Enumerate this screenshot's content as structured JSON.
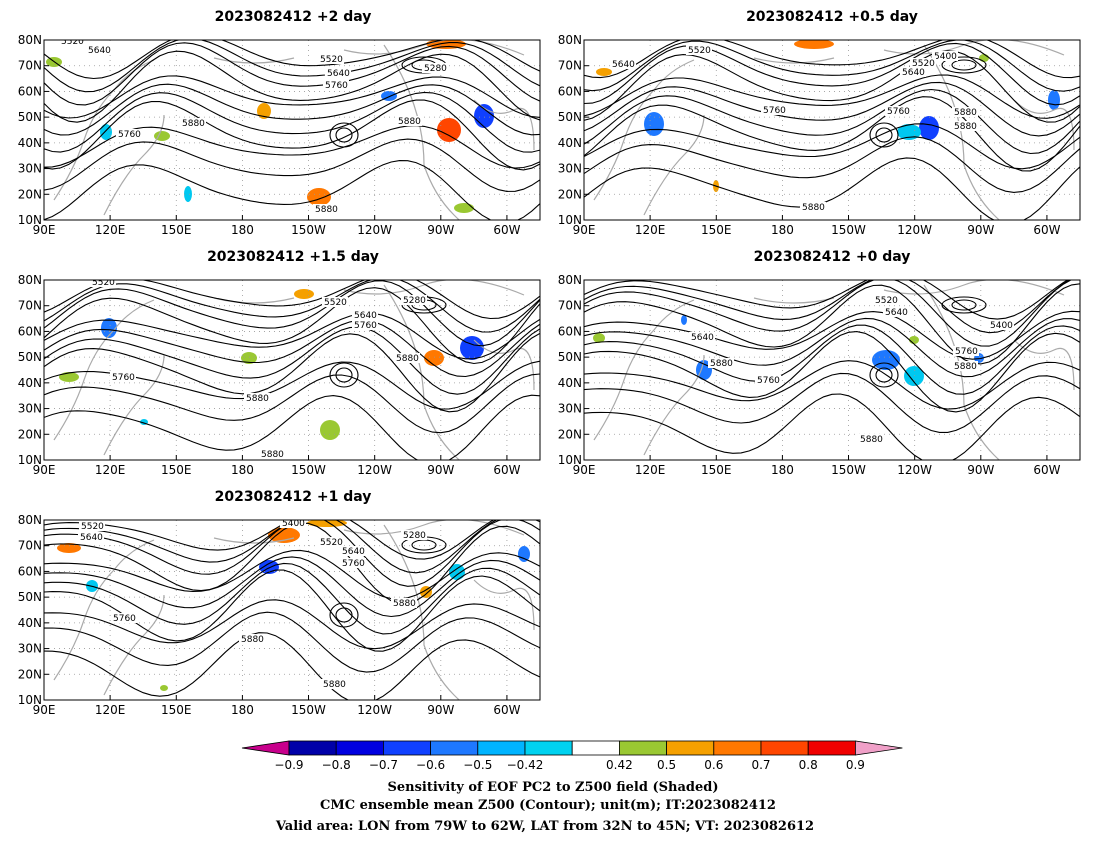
{
  "panels": [
    {
      "id": "p2",
      "title": "2023082412  +2 day",
      "contour_labels": [
        "5520",
        "5640",
        "5520",
        "5640",
        "5760",
        "5280",
        "5760",
        "5880",
        "5880",
        "5880"
      ]
    },
    {
      "id": "p05",
      "title": "2023082412  +0.5 day",
      "contour_labels": [
        "5520",
        "5640",
        "5400",
        "5520",
        "5640",
        "5760",
        "5760",
        "5880",
        "5880",
        "5880"
      ]
    },
    {
      "id": "p15",
      "title": "2023082412  +1.5 day",
      "contour_labels": [
        "5520",
        "5520",
        "5280",
        "5640",
        "5760",
        "5760",
        "5880",
        "5880",
        "5880"
      ]
    },
    {
      "id": "p0",
      "title": "2023082412  +0 day",
      "contour_labels": [
        "5520",
        "5640",
        "5400",
        "5640",
        "5880",
        "5760",
        "5760",
        "5880",
        "5880"
      ]
    },
    {
      "id": "p1",
      "title": "2023082412  +1 day",
      "contour_labels": [
        "5400",
        "5280",
        "5520",
        "5640",
        "5520",
        "5640",
        "5760",
        "5760",
        "5880",
        "5880",
        "5880"
      ]
    }
  ],
  "axes": {
    "lon_ticks": [
      "90E",
      "120E",
      "150E",
      "180",
      "150W",
      "120W",
      "90W",
      "60W"
    ],
    "lat_ticks": [
      "80N",
      "70N",
      "60N",
      "50N",
      "40N",
      "30N",
      "20N",
      "10N"
    ]
  },
  "colorbar": {
    "labels": [
      "−0.9",
      "−0.8",
      "−0.7",
      "−0.6",
      "−0.5",
      "−0.42",
      "0.42",
      "0.5",
      "0.6",
      "0.7",
      "0.8",
      "0.9"
    ],
    "colors": [
      "#0000a8",
      "#0000e0",
      "#1040ff",
      "#1e78ff",
      "#00b4ff",
      "#00d2f0",
      "#ffffff",
      "#9ac832",
      "#f5a000",
      "#ff7800",
      "#ff4600",
      "#f00000"
    ],
    "left_arrow_color": "#c8008c",
    "right_arrow_color": "#f0a0c8"
  },
  "caption": {
    "line1": "Sensitivity of EOF PC2 to Z500 field (Shaded)",
    "line2": "CMC ensemble mean Z500 (Contour); unit(m); IT:2023082412",
    "line3": "Valid area: LON from 79W to 62W, LAT from 32N to 45N; VT: 2023082612"
  }
}
